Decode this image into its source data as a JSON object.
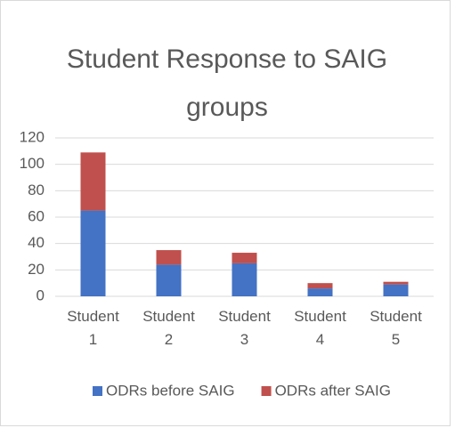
{
  "chart_data": {
    "type": "stacked_bar",
    "title": "Student Response to SAIG groups",
    "categories": [
      "Student 1",
      "Student 2",
      "Student 3",
      "Student 4",
      "Student 5"
    ],
    "series": [
      {
        "name": "ODRs before SAIG",
        "color": "#4472c4",
        "values": [
          65,
          24,
          25,
          6,
          9
        ]
      },
      {
        "name": "ODRs after SAIG",
        "color": "#c0504d",
        "values": [
          44,
          11,
          8,
          4,
          2
        ]
      }
    ],
    "ylim": [
      0,
      120
    ],
    "yticks": [
      0,
      20,
      40,
      60,
      80,
      100,
      120
    ],
    "grid": true,
    "legend": "bottom"
  }
}
